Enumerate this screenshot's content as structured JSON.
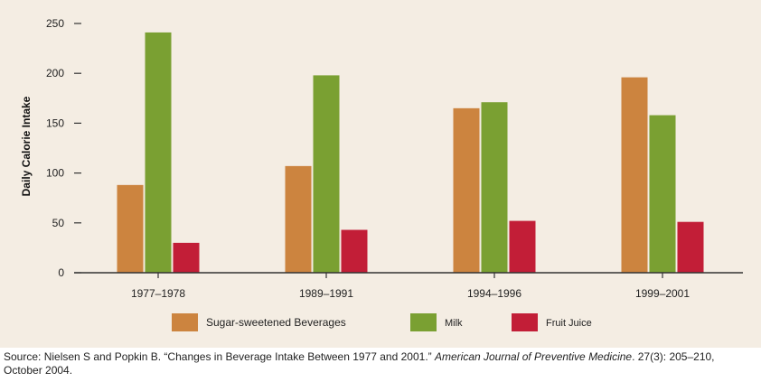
{
  "colors": {
    "panel_background": "#f4ede3",
    "axis": "#333333"
  },
  "chart_data": {
    "type": "bar",
    "title": "",
    "ylabel": "Daily Calorie Intake",
    "xlabel": "",
    "ylim": [
      0,
      250
    ],
    "yticks": [
      0,
      50,
      100,
      150,
      200,
      250
    ],
    "categories": [
      "1977–1978",
      "1989–1991",
      "1994–1996",
      "1999–2001"
    ],
    "series": [
      {
        "name": "Sugar-sweetened Beverages",
        "color": "#cc843f",
        "values": [
          88,
          107,
          165,
          196
        ]
      },
      {
        "name": "Milk",
        "color": "#7aa032",
        "values": [
          241,
          198,
          171,
          158
        ]
      },
      {
        "name": "Fruit Juice",
        "color": "#c21e37",
        "values": [
          30,
          43,
          52,
          51
        ]
      }
    ],
    "legend_position": "bottom"
  },
  "source": {
    "prefix": "Source: Nielsen S and Popkin B. “Changes in Beverage Intake Between 1977 and 2001.” ",
    "journal": "American Journal of Preventive Medicine",
    "suffix": ". 27(3): 205–210, October 2004."
  }
}
